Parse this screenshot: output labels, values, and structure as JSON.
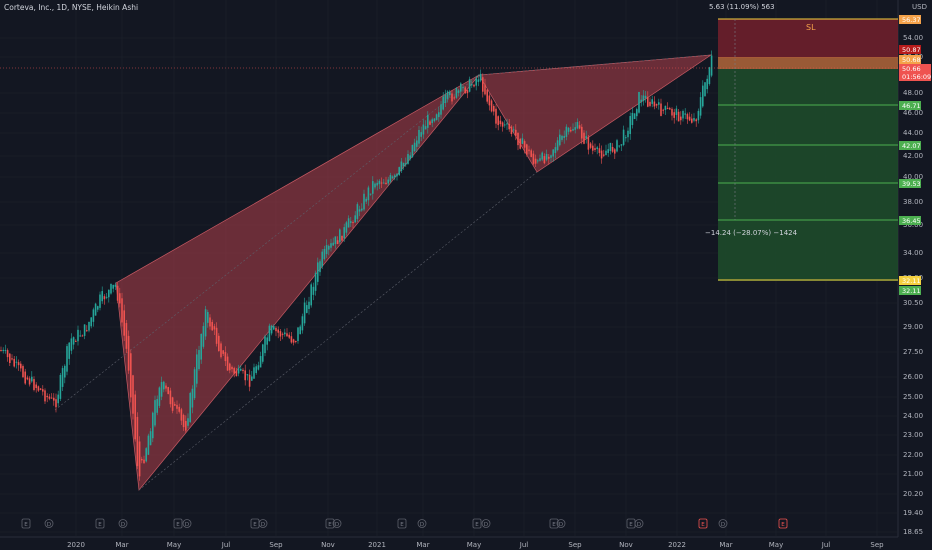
{
  "symbol_title": "Corteva, Inc., 1D, NYSE, Heikin Ashi",
  "currency": "USD",
  "price_axis": {
    "ticks": [
      "54.00",
      "52.00",
      "48.00",
      "46.00",
      "44.00",
      "42.00",
      "40.00",
      "38.00",
      "36.00",
      "34.00",
      "32.00",
      "30.50",
      "29.00",
      "27.50",
      "26.00",
      "25.00",
      "24.00",
      "23.00",
      "22.00",
      "21.00",
      "20.20",
      "19.40",
      "18.65"
    ]
  },
  "time_axis": {
    "labels": [
      "2020",
      "Mar",
      "May",
      "Jul",
      "Sep",
      "Nov",
      "2021",
      "Mar",
      "May",
      "Jul",
      "Sep",
      "Nov",
      "2022",
      "Mar",
      "May",
      "Jul",
      "Sep"
    ]
  },
  "price_tags": {
    "sl_top": "56.37",
    "level_50_87": "50.87",
    "level_50_68": "50.68",
    "current_price": "50.66",
    "countdown": "01:56:09",
    "tp1": "46.71",
    "tp2": "42.07",
    "tp3": "39.53",
    "tp4": "36.45",
    "bottom_a": "32.11",
    "bottom_b": "32.11"
  },
  "annotations": {
    "sl_label": "SL",
    "measure_up": "5.63 (11.09%) 563",
    "measure_down": "−14.24 (−28.07%) −1424"
  },
  "event_markers": {
    "earnings_letter": "E",
    "dividend_letter": "D"
  },
  "colors": {
    "background": "#131722",
    "pattern_fill": "#b2404a",
    "stop_zone": "#6e1f2b",
    "target_zone": "#1e4a2a",
    "up_candle": "#26a69a",
    "down_candle": "#ef5350",
    "level_line": "#4caf50",
    "bottom_line": "#f4d03f"
  },
  "chart_data": {
    "type": "candlestick",
    "series_style": "Heikin Ashi",
    "x": [
      "2020-01",
      "2020-03",
      "2020-05",
      "2020-07",
      "2020-09",
      "2020-11",
      "2021-01",
      "2021-03",
      "2021-05",
      "2021-07",
      "2021-09",
      "2021-11",
      "2022-01",
      "2022-02"
    ],
    "close": [
      30.0,
      20.5,
      23.5,
      26.0,
      29.5,
      36.0,
      40.0,
      46.5,
      47.5,
      42.0,
      42.5,
      45.0,
      46.0,
      50.7
    ],
    "ylim": [
      18.65,
      56.37
    ],
    "pattern_points": [
      {
        "x": "2020-02-20",
        "y": 32.0
      },
      {
        "x": "2020-03-23",
        "y": 20.4
      },
      {
        "x": "2021-05-05",
        "y": 48.8
      },
      {
        "x": "2021-08-20",
        "y": 41.3
      },
      {
        "x": "2022-02-15",
        "y": 50.9
      }
    ]
  }
}
